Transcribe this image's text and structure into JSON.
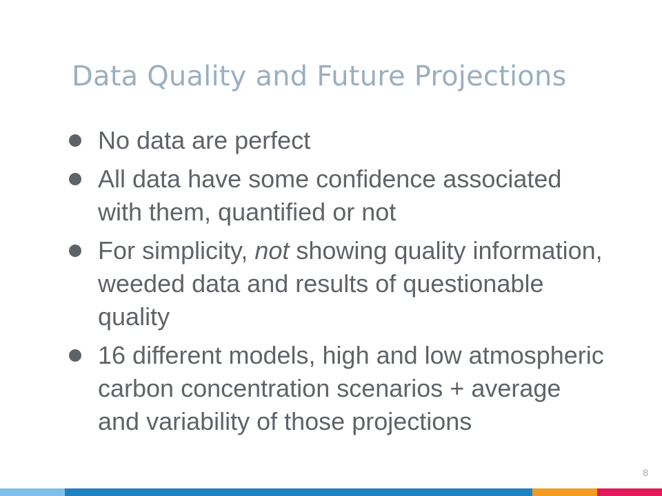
{
  "slide": {
    "title": "Data Quality and Future Projections",
    "page_number": "8",
    "bullets": [
      {
        "text": "No data are perfect"
      },
      {
        "text": "All data have some confidence associated with them, quantified or not"
      },
      {
        "prefix": "For simplicity, ",
        "emphasis": "not",
        "suffix": " showing quality information, weeded data and results of questionable quality"
      },
      {
        "text": "16 different models, high and low atmospheric carbon concentration scenarios + average and variability of those projections"
      }
    ]
  },
  "colors": {
    "title": "#9aafc0",
    "body_text": "#5f6368",
    "footer_light_blue": "#7fbfe9",
    "footer_blue": "#2081c3",
    "footer_orange": "#f39c1f",
    "footer_pink": "#e2195a"
  }
}
